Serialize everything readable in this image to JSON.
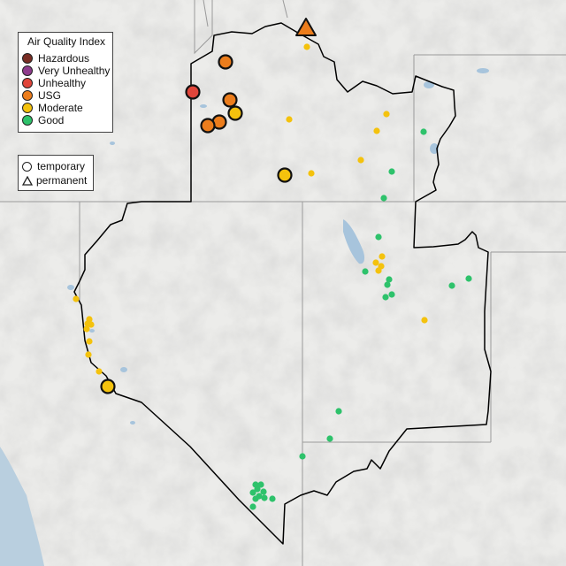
{
  "legend": {
    "title": "Air Quality Index",
    "categories": [
      {
        "label": "Hazardous",
        "color": "#7a2e25"
      },
      {
        "label": "Very Unhealthy",
        "color": "#8e3b8c"
      },
      {
        "label": "Unhealthy",
        "color": "#e0453a"
      },
      {
        "label": "USG",
        "color": "#ec7d1c"
      },
      {
        "label": "Moderate",
        "color": "#f4c20d"
      },
      {
        "label": "Good",
        "color": "#2ec26b"
      }
    ],
    "monitor_types": [
      {
        "label": "temporary",
        "shape": "circle"
      },
      {
        "label": "permanent",
        "shape": "triangle"
      }
    ]
  },
  "monitors": [
    {
      "name": "monitor-permanent",
      "type": "permanent",
      "category": "USG"
    },
    {
      "name": "monitor-temporary-large",
      "type": "temporary",
      "category": "USG"
    },
    {
      "name": "monitor-temporary-large",
      "type": "temporary",
      "category": "Unhealthy"
    },
    {
      "name": "monitor-temporary-large",
      "type": "temporary",
      "category": "Moderate"
    }
  ]
}
